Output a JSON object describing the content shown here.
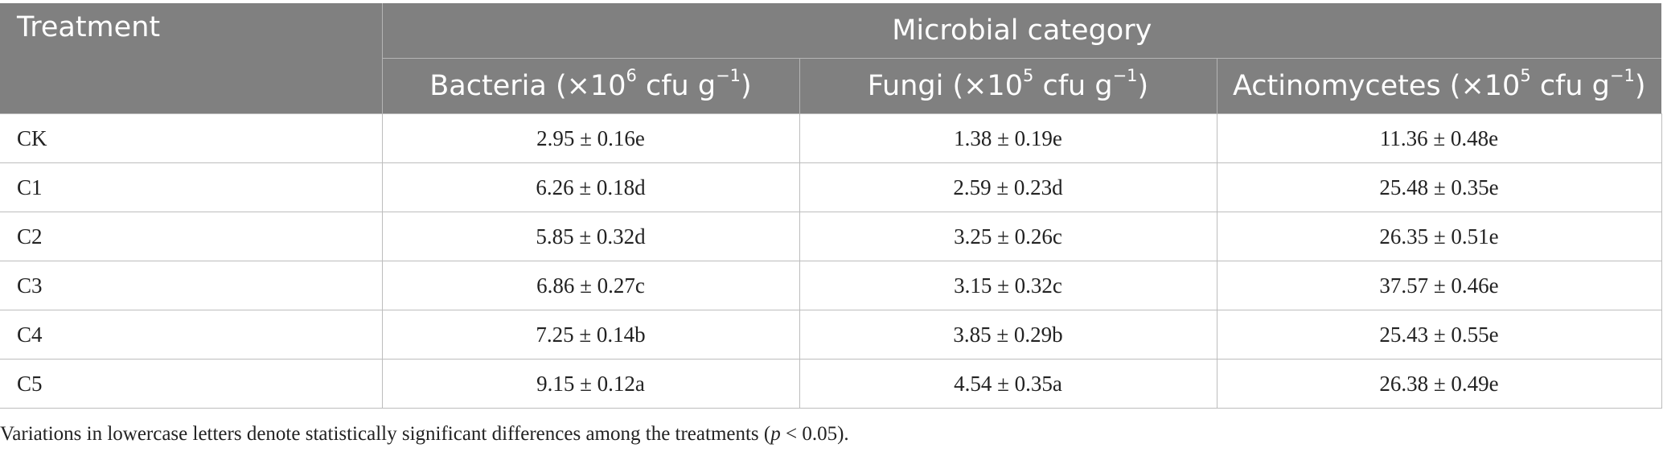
{
  "table": {
    "treatment_header": "Treatment",
    "group_header": "Microbial category",
    "columns": [
      {
        "label": "Bacteria (×10",
        "exponent": "6",
        "unit": " cfu g",
        "unit_exponent": "−1",
        "close": ")"
      },
      {
        "label": "Fungi (×10",
        "exponent": "5",
        "unit": " cfu g",
        "unit_exponent": "−1",
        "close": ")"
      },
      {
        "label": "Actinomycetes (×10",
        "exponent": "5",
        "unit": " cfu g",
        "unit_exponent": "−1",
        "close": ")"
      }
    ],
    "rows": [
      {
        "treatment": "CK",
        "bacteria": "2.95 ± 0.16e",
        "fungi": "1.38 ± 0.19e",
        "actinomycetes": "11.36 ± 0.48e"
      },
      {
        "treatment": "C1",
        "bacteria": "6.26 ± 0.18d",
        "fungi": "2.59 ± 0.23d",
        "actinomycetes": "25.48 ± 0.35e"
      },
      {
        "treatment": "C2",
        "bacteria": "5.85 ± 0.32d",
        "fungi": "3.25 ± 0.26c",
        "actinomycetes": "26.35 ± 0.51e"
      },
      {
        "treatment": "C3",
        "bacteria": "6.86 ± 0.27c",
        "fungi": "3.15 ± 0.32c",
        "actinomycetes": "37.57 ± 0.46e"
      },
      {
        "treatment": "C4",
        "bacteria": "7.25 ± 0.14b",
        "fungi": "3.85 ± 0.29b",
        "actinomycetes": "25.43 ± 0.55e"
      },
      {
        "treatment": "C5",
        "bacteria": "9.15 ± 0.12a",
        "fungi": "4.54 ± 0.35a",
        "actinomycetes": "26.38 ± 0.49e"
      }
    ]
  },
  "footnote": {
    "prefix": "Variations in lowercase letters denote statistically significant differences among the treatments (",
    "italic": "p",
    "suffix": " < 0.05)."
  },
  "colors": {
    "header_bg": "#808080",
    "header_text": "#ffffff",
    "grid_line": "#bdbdbd"
  }
}
